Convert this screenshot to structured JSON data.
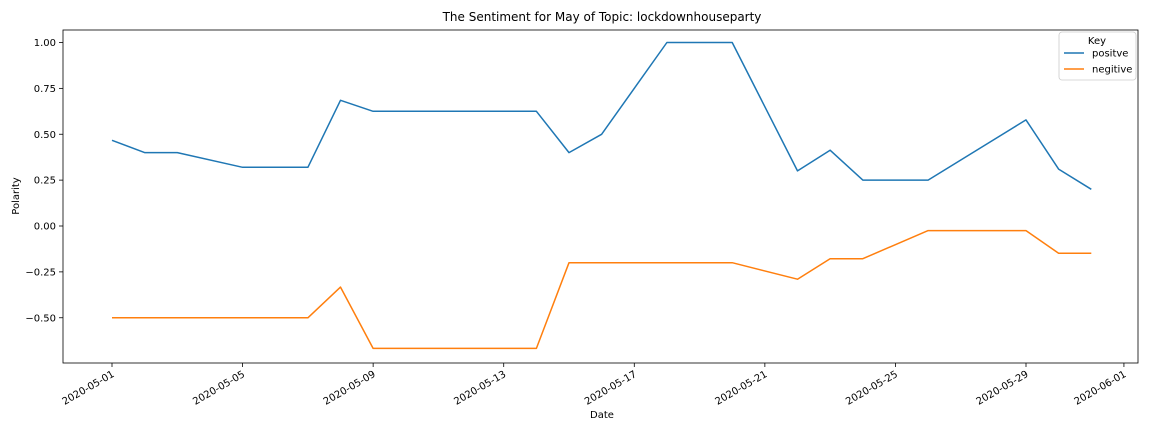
{
  "chart_data": {
    "type": "line",
    "title": "The Sentiment for May of Topic: lockdownhouseparty",
    "xlabel": "Date",
    "ylabel": "Polarity",
    "legend": {
      "title": "Key",
      "placement": "top-right"
    },
    "x_ticks": [
      "2020-05-01",
      "2020-05-05",
      "2020-05-09",
      "2020-05-13",
      "2020-05-17",
      "2020-05-21",
      "2020-05-25",
      "2020-05-29",
      "2020-06-01"
    ],
    "y_ticks": [
      "−0.50",
      "−0.25",
      "0.00",
      "0.25",
      "0.50",
      "0.75",
      "1.00"
    ],
    "xlim": [
      "2020-04-29",
      "2020-06-01"
    ],
    "ylim": [
      -0.75,
      1.1
    ],
    "grid": false,
    "series": [
      {
        "name": "positve",
        "color": "#1f77b4",
        "points": [
          [
            "2020-05-01",
            0.467
          ],
          [
            "2020-05-02",
            0.4
          ],
          [
            "2020-05-03",
            0.4
          ],
          [
            "2020-05-05",
            0.32
          ],
          [
            "2020-05-07",
            0.32
          ],
          [
            "2020-05-08",
            0.685
          ],
          [
            "2020-05-09",
            0.625
          ],
          [
            "2020-05-14",
            0.625
          ],
          [
            "2020-05-15",
            0.4
          ],
          [
            "2020-05-16",
            0.5
          ],
          [
            "2020-05-18",
            1.0
          ],
          [
            "2020-05-20",
            1.0
          ],
          [
            "2020-05-22",
            0.3
          ],
          [
            "2020-05-23",
            0.413
          ],
          [
            "2020-05-24",
            0.25
          ],
          [
            "2020-05-26",
            0.25
          ],
          [
            "2020-05-29",
            0.578
          ],
          [
            "2020-05-30",
            0.31
          ],
          [
            "2020-05-31",
            0.2
          ]
        ]
      },
      {
        "name": "negitive",
        "color": "#ff7f0e",
        "points": [
          [
            "2020-05-01",
            -0.5
          ],
          [
            "2020-05-07",
            -0.5
          ],
          [
            "2020-05-08",
            -0.333
          ],
          [
            "2020-05-09",
            -0.667
          ],
          [
            "2020-05-14",
            -0.667
          ],
          [
            "2020-05-15",
            -0.2
          ],
          [
            "2020-05-20",
            -0.2
          ],
          [
            "2020-05-22",
            -0.29
          ],
          [
            "2020-05-23",
            -0.178
          ],
          [
            "2020-05-24",
            -0.178
          ],
          [
            "2020-05-26",
            -0.025
          ],
          [
            "2020-05-29",
            -0.025
          ],
          [
            "2020-05-30",
            -0.148
          ],
          [
            "2020-05-31",
            -0.148
          ]
        ]
      }
    ]
  }
}
